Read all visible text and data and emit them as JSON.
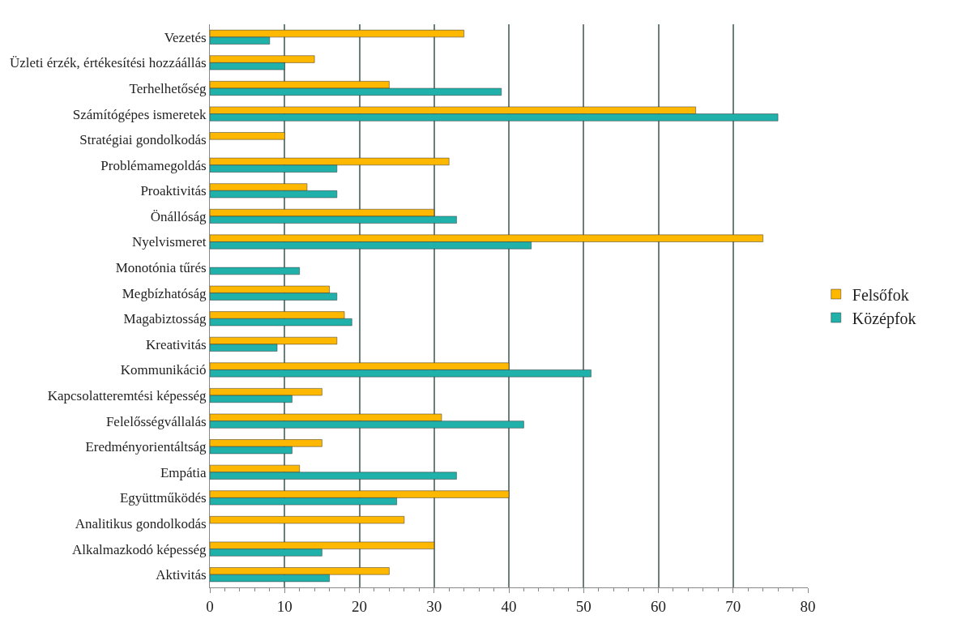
{
  "chart_data": {
    "type": "bar",
    "orientation": "horizontal",
    "categories": [
      "Vezetés",
      "Üzleti érzék, értékesítési hozzáállás",
      "Terhelhetőség",
      "Számítógépes ismeretek",
      "Stratégiai gondolkodás",
      "Problémamegoldás",
      "Proaktivitás",
      "Önállóság",
      "Nyelvismeret",
      "Monotónia tűrés",
      "Megbízhatóság",
      "Magabiztosság",
      "Kreativitás",
      "Kommunikáció",
      "Kapcsolatteremtési képesség",
      "Felelősségvállalás",
      "Eredményorientáltság",
      "Empátia",
      "Együttműködés",
      "Analitikus gondolkodás",
      "Alkalmazkodó képesség",
      "Aktivitás"
    ],
    "series": [
      {
        "name": "Felsőfok",
        "color": "#ffb800",
        "values": [
          34,
          14,
          24,
          65,
          10,
          32,
          13,
          30,
          74,
          null,
          16,
          18,
          17,
          40,
          15,
          31,
          15,
          12,
          40,
          26,
          30,
          24
        ]
      },
      {
        "name": "Középfok",
        "color": "#20b2aa",
        "values": [
          8,
          10,
          39,
          76,
          null,
          17,
          17,
          33,
          43,
          12,
          17,
          19,
          9,
          51,
          11,
          42,
          11,
          33,
          25,
          null,
          15,
          16
        ]
      }
    ],
    "xlim": [
      0,
      80
    ],
    "xticks": [
      0,
      10,
      20,
      30,
      40,
      50,
      60,
      70,
      80
    ],
    "grid": "x",
    "legend": "right"
  }
}
